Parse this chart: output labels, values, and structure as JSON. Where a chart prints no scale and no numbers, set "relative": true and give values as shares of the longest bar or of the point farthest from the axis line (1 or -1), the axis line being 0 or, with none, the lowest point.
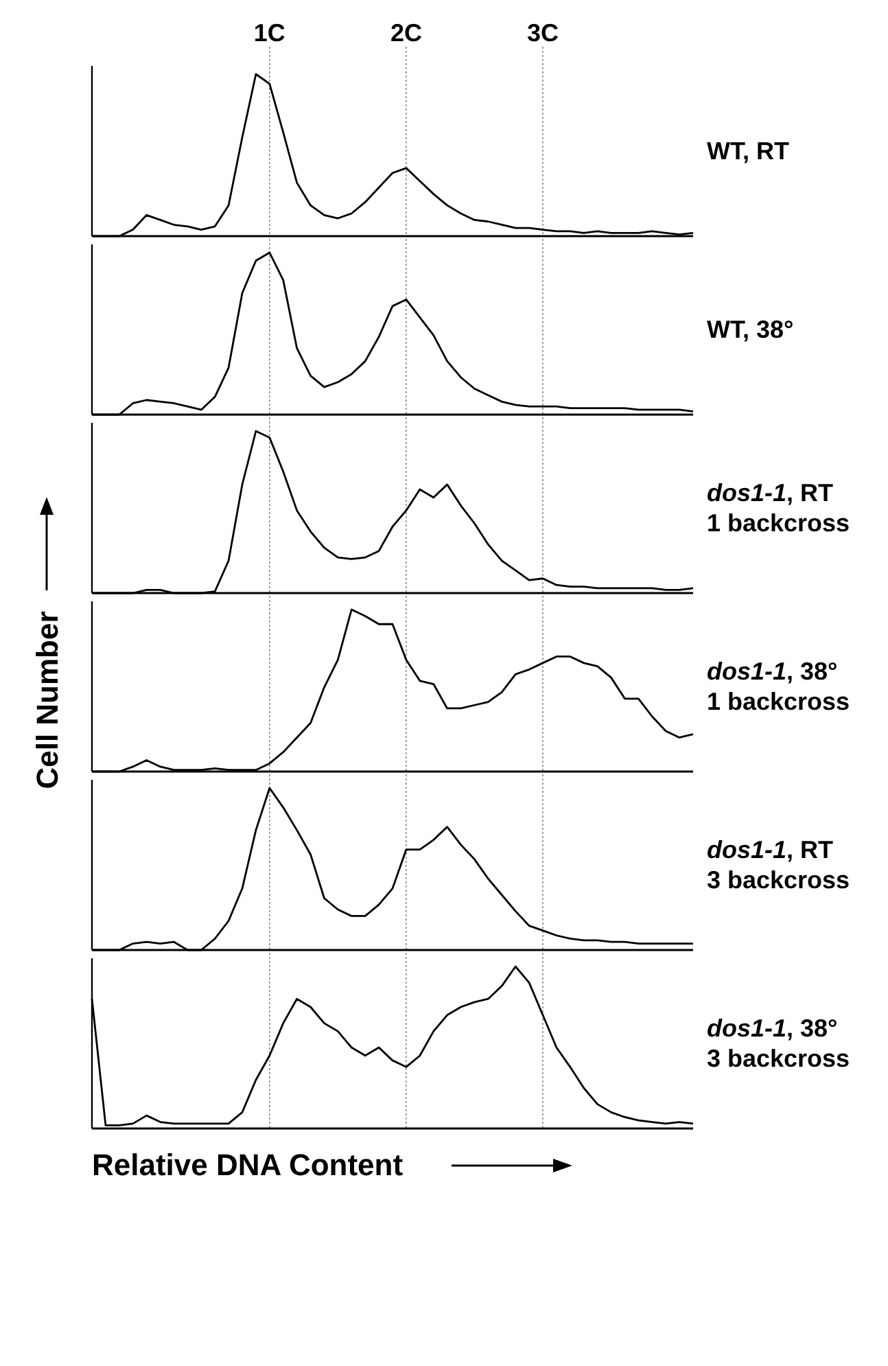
{
  "chart_data": [
    {
      "type": "line",
      "annotations": [
        "WT, RT"
      ],
      "relative": true,
      "tick_labels": "x",
      "categories": [
        null,
        null,
        null,
        null,
        null,
        null,
        null,
        null,
        null,
        null,
        null,
        null,
        null,
        "1C",
        null,
        null,
        null,
        null,
        null,
        null,
        null,
        null,
        null,
        "2C",
        null,
        null,
        null,
        null,
        null,
        null,
        null,
        null,
        null,
        "3C",
        null,
        null,
        null,
        null,
        null,
        null,
        null,
        null,
        null,
        null,
        null
      ],
      "ref_lines": [
        {
          "axis": "x",
          "value": "1C"
        },
        {
          "axis": "x",
          "value": "2C"
        },
        {
          "axis": "x",
          "value": "3C"
        }
      ],
      "series": [
        {
          "color": "#000000",
          "values": [
            0,
            0,
            0,
            0.04,
            0.13,
            0.1,
            0.07,
            0.06,
            0.04,
            0.06,
            0.19,
            0.61,
            1.0,
            0.94,
            0.64,
            0.33,
            0.19,
            0.13,
            0.11,
            0.14,
            0.21,
            0.3,
            0.39,
            0.42,
            0.34,
            0.26,
            0.19,
            0.14,
            0.1,
            0.09,
            0.07,
            0.05,
            0.05,
            0.04,
            0.03,
            0.03,
            0.02,
            0.03,
            0.02,
            0.02,
            0.02,
            0.03,
            0.02,
            0.01,
            0.02
          ]
        }
      ]
    },
    {
      "type": "line",
      "annotations": [
        "WT, 38°"
      ],
      "relative": true,
      "tick_labels": false,
      "categories": [
        null,
        null,
        null,
        null,
        null,
        null,
        null,
        null,
        null,
        null,
        null,
        null,
        null,
        "1C",
        null,
        null,
        null,
        null,
        null,
        null,
        null,
        null,
        null,
        "2C",
        null,
        null,
        null,
        null,
        null,
        null,
        null,
        null,
        null,
        "3C",
        null,
        null,
        null,
        null,
        null,
        null,
        null,
        null,
        null,
        null,
        null
      ],
      "ref_lines": [
        {
          "axis": "x",
          "value": "1C"
        },
        {
          "axis": "x",
          "value": "2C"
        },
        {
          "axis": "x",
          "value": "3C"
        }
      ],
      "series": [
        {
          "color": "#000000",
          "values": [
            0,
            0,
            0,
            0.07,
            0.09,
            0.08,
            0.07,
            0.05,
            0.03,
            0.11,
            0.29,
            0.75,
            0.95,
            1.0,
            0.83,
            0.41,
            0.24,
            0.17,
            0.2,
            0.25,
            0.33,
            0.48,
            0.67,
            0.71,
            0.6,
            0.49,
            0.33,
            0.23,
            0.16,
            0.12,
            0.08,
            0.06,
            0.05,
            0.05,
            0.05,
            0.04,
            0.04,
            0.04,
            0.04,
            0.04,
            0.03,
            0.03,
            0.03,
            0.03,
            0.02
          ]
        }
      ]
    },
    {
      "type": "line",
      "annotations": [
        "dos1-1, RT",
        "1 backcross"
      ],
      "relative": true,
      "tick_labels": false,
      "categories": [
        null,
        null,
        null,
        null,
        null,
        null,
        null,
        null,
        null,
        null,
        null,
        null,
        null,
        "1C",
        null,
        null,
        null,
        null,
        null,
        null,
        null,
        null,
        null,
        "2C",
        null,
        null,
        null,
        null,
        null,
        null,
        null,
        null,
        null,
        "3C",
        null,
        null,
        null,
        null,
        null,
        null,
        null,
        null,
        null,
        null,
        null
      ],
      "ref_lines": [
        {
          "axis": "x",
          "value": "1C"
        },
        {
          "axis": "x",
          "value": "2C"
        },
        {
          "axis": "x",
          "value": "3C"
        }
      ],
      "series": [
        {
          "color": "#000000",
          "values": [
            0,
            0,
            0,
            0,
            0.02,
            0.02,
            0,
            0,
            0,
            0.01,
            0.2,
            0.67,
            1.0,
            0.96,
            0.75,
            0.51,
            0.38,
            0.28,
            0.22,
            0.21,
            0.22,
            0.26,
            0.41,
            0.51,
            0.64,
            0.59,
            0.67,
            0.54,
            0.43,
            0.3,
            0.2,
            0.14,
            0.08,
            0.09,
            0.05,
            0.04,
            0.04,
            0.03,
            0.03,
            0.03,
            0.03,
            0.03,
            0.02,
            0.02,
            0.03
          ]
        }
      ]
    },
    {
      "type": "line",
      "annotations": [
        "dos1-1, 38°",
        "1 backcross"
      ],
      "ylabel": "Cell Number",
      "relative": true,
      "tick_labels": false,
      "categories": [
        null,
        null,
        null,
        null,
        null,
        null,
        null,
        null,
        null,
        null,
        null,
        null,
        null,
        "1C",
        null,
        null,
        null,
        null,
        null,
        null,
        null,
        null,
        null,
        "2C",
        null,
        null,
        null,
        null,
        null,
        null,
        null,
        null,
        null,
        "3C",
        null,
        null,
        null,
        null,
        null,
        null,
        null,
        null,
        null,
        null,
        null
      ],
      "ref_lines": [
        {
          "axis": "x",
          "value": "1C"
        },
        {
          "axis": "x",
          "value": "2C"
        },
        {
          "axis": "x",
          "value": "3C"
        }
      ],
      "series": [
        {
          "color": "#000000",
          "values": [
            0,
            0,
            0,
            0.03,
            0.07,
            0.03,
            0.01,
            0.01,
            0.01,
            0.02,
            0.01,
            0.01,
            0.01,
            0.05,
            0.12,
            0.21,
            0.3,
            0.52,
            0.69,
            1.0,
            0.96,
            0.91,
            0.91,
            0.69,
            0.56,
            0.54,
            0.39,
            0.39,
            0.41,
            0.43,
            0.49,
            0.6,
            0.63,
            0.67,
            0.71,
            0.71,
            0.67,
            0.65,
            0.58,
            0.45,
            0.45,
            0.34,
            0.25,
            0.21,
            0.23
          ]
        }
      ]
    },
    {
      "type": "line",
      "annotations": [
        "dos1-1, RT",
        "3 backcross"
      ],
      "relative": true,
      "tick_labels": false,
      "categories": [
        null,
        null,
        null,
        null,
        null,
        null,
        null,
        null,
        null,
        null,
        null,
        null,
        null,
        "1C",
        null,
        null,
        null,
        null,
        null,
        null,
        null,
        null,
        null,
        "2C",
        null,
        null,
        null,
        null,
        null,
        null,
        null,
        null,
        null,
        "3C",
        null,
        null,
        null,
        null,
        null,
        null,
        null,
        null,
        null,
        null,
        null
      ],
      "ref_lines": [
        {
          "axis": "x",
          "value": "1C"
        },
        {
          "axis": "x",
          "value": "2C"
        },
        {
          "axis": "x",
          "value": "3C"
        }
      ],
      "series": [
        {
          "color": "#000000",
          "values": [
            0,
            0,
            0,
            0.04,
            0.05,
            0.04,
            0.05,
            0,
            0,
            0.07,
            0.18,
            0.38,
            0.74,
            1.0,
            0.88,
            0.74,
            0.59,
            0.32,
            0.25,
            0.21,
            0.21,
            0.28,
            0.38,
            0.62,
            0.62,
            0.68,
            0.76,
            0.65,
            0.56,
            0.44,
            0.34,
            0.24,
            0.15,
            0.12,
            0.09,
            0.07,
            0.06,
            0.06,
            0.05,
            0.05,
            0.04,
            0.04,
            0.04,
            0.04,
            0.04
          ]
        }
      ]
    },
    {
      "type": "line",
      "annotations": [
        "dos1-1, 38°",
        "3 backcross"
      ],
      "xlabel": "Relative DNA Content",
      "relative": true,
      "tick_labels": false,
      "categories": [
        null,
        null,
        null,
        null,
        null,
        null,
        null,
        null,
        null,
        null,
        null,
        null,
        null,
        "1C",
        null,
        null,
        null,
        null,
        null,
        null,
        null,
        null,
        null,
        "2C",
        null,
        null,
        null,
        null,
        null,
        null,
        null,
        null,
        null,
        "3C",
        null,
        null,
        null,
        null,
        null,
        null,
        null,
        null,
        null,
        null,
        null
      ],
      "ref_lines": [
        {
          "axis": "x",
          "value": "1C"
        },
        {
          "axis": "x",
          "value": "2C"
        },
        {
          "axis": "x",
          "value": "3C"
        }
      ],
      "series": [
        {
          "color": "#000000",
          "values": [
            0.8,
            0.02,
            0.02,
            0.03,
            0.08,
            0.04,
            0.03,
            0.03,
            0.03,
            0.03,
            0.03,
            0.1,
            0.3,
            0.45,
            0.65,
            0.8,
            0.75,
            0.65,
            0.6,
            0.5,
            0.45,
            0.5,
            0.42,
            0.38,
            0.45,
            0.6,
            0.7,
            0.75,
            0.78,
            0.8,
            0.88,
            1.0,
            0.9,
            0.7,
            0.5,
            0.38,
            0.25,
            0.15,
            0.1,
            0.07,
            0.05,
            0.04,
            0.03,
            0.04,
            0.03
          ]
        }
      ]
    }
  ]
}
